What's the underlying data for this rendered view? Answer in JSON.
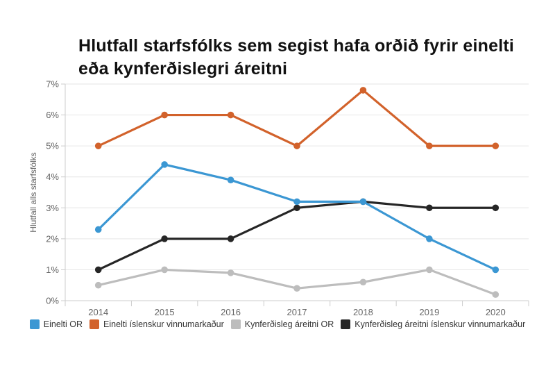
{
  "chart_data": {
    "type": "line",
    "title": "Hlutfall starfsfólks sem segist hafa orðið fyrir einelti eða kynferðislegri áreitni",
    "xlabel": "",
    "ylabel": "Hlutfall alls starfsfólks",
    "categories": [
      "2014",
      "2015",
      "2016",
      "2017",
      "2018",
      "2019",
      "2020"
    ],
    "series": [
      {
        "name": "Einelti OR",
        "color": "#3B97D3",
        "values": [
          2.3,
          4.4,
          3.9,
          3.2,
          3.2,
          2.0,
          1.0
        ]
      },
      {
        "name": "Einelti íslenskur vinnumarkaður",
        "color": "#D2622B",
        "values": [
          5.0,
          6.0,
          6.0,
          5.0,
          6.8,
          5.0,
          5.0
        ]
      },
      {
        "name": "Kynferðisleg áreitni OR",
        "color": "#BDBDBD",
        "values": [
          0.5,
          1.0,
          0.9,
          0.4,
          0.6,
          1.0,
          0.2
        ]
      },
      {
        "name": "Kynferðisleg áreitni íslenskur vinnumarkaður",
        "color": "#262626",
        "values": [
          1.0,
          2.0,
          2.0,
          3.0,
          3.2,
          3.0,
          3.0
        ]
      }
    ],
    "ylim": [
      0,
      7
    ],
    "yticks": [
      "0%",
      "1%",
      "2%",
      "3%",
      "4%",
      "5%",
      "6%",
      "7%"
    ],
    "grid": true,
    "legend_position": "bottom"
  },
  "palette": {
    "grid_line": "#E6E6E6",
    "axis_line": "#CCCCCC",
    "tick_label": "#666666",
    "title_text": "#111111",
    "legend_text": "#333333",
    "background": "#FFFFFF"
  }
}
